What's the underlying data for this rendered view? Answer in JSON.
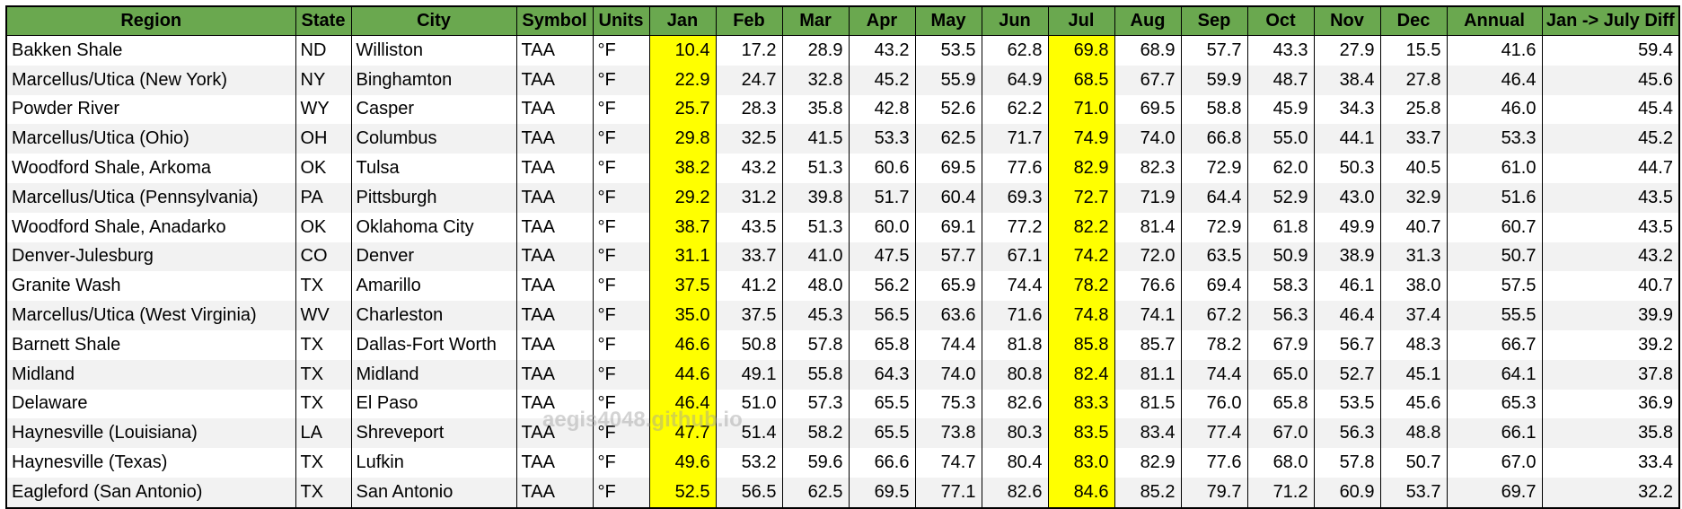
{
  "table": {
    "columns": [
      "Region",
      "State",
      "City",
      "Symbol",
      "Units",
      "Jan",
      "Feb",
      "Mar",
      "Apr",
      "May",
      "Jun",
      "Jul",
      "Aug",
      "Sep",
      "Oct",
      "Nov",
      "Dec",
      "Annual",
      "Jan -> July Diff"
    ],
    "highlight_columns": [
      "Jan",
      "Jul"
    ],
    "rows": [
      [
        "Bakken Shale",
        "ND",
        "Williston",
        "TAA",
        "°F",
        "10.4",
        "17.2",
        "28.9",
        "43.2",
        "53.5",
        "62.8",
        "69.8",
        "68.9",
        "57.7",
        "43.3",
        "27.9",
        "15.5",
        "41.6",
        "59.4"
      ],
      [
        "Marcellus/Utica (New York)",
        "NY",
        "Binghamton",
        "TAA",
        "°F",
        "22.9",
        "24.7",
        "32.8",
        "45.2",
        "55.9",
        "64.9",
        "68.5",
        "67.7",
        "59.9",
        "48.7",
        "38.4",
        "27.8",
        "46.4",
        "45.6"
      ],
      [
        "Powder River",
        "WY",
        "Casper",
        "TAA",
        "°F",
        "25.7",
        "28.3",
        "35.8",
        "42.8",
        "52.6",
        "62.2",
        "71.0",
        "69.5",
        "58.8",
        "45.9",
        "34.3",
        "25.8",
        "46.0",
        "45.4"
      ],
      [
        "Marcellus/Utica (Ohio)",
        "OH",
        "Columbus",
        "TAA",
        "°F",
        "29.8",
        "32.5",
        "41.5",
        "53.3",
        "62.5",
        "71.7",
        "74.9",
        "74.0",
        "66.8",
        "55.0",
        "44.1",
        "33.7",
        "53.3",
        "45.2"
      ],
      [
        "Woodford Shale, Arkoma",
        "OK",
        "Tulsa",
        "TAA",
        "°F",
        "38.2",
        "43.2",
        "51.3",
        "60.6",
        "69.5",
        "77.6",
        "82.9",
        "82.3",
        "72.9",
        "62.0",
        "50.3",
        "40.5",
        "61.0",
        "44.7"
      ],
      [
        "Marcellus/Utica (Pennsylvania)",
        "PA",
        "Pittsburgh",
        "TAA",
        "°F",
        "29.2",
        "31.2",
        "39.8",
        "51.7",
        "60.4",
        "69.3",
        "72.7",
        "71.9",
        "64.4",
        "52.9",
        "43.0",
        "32.9",
        "51.6",
        "43.5"
      ],
      [
        "Woodford Shale, Anadarko",
        "OK",
        "Oklahoma City",
        "TAA",
        "°F",
        "38.7",
        "43.5",
        "51.3",
        "60.0",
        "69.1",
        "77.2",
        "82.2",
        "81.4",
        "72.9",
        "61.8",
        "49.9",
        "40.7",
        "60.7",
        "43.5"
      ],
      [
        "Denver-Julesburg",
        "CO",
        "Denver",
        "TAA",
        "°F",
        "31.1",
        "33.7",
        "41.0",
        "47.5",
        "57.7",
        "67.1",
        "74.2",
        "72.0",
        "63.5",
        "50.9",
        "38.9",
        "31.3",
        "50.7",
        "43.2"
      ],
      [
        "Granite Wash",
        "TX",
        "Amarillo",
        "TAA",
        "°F",
        "37.5",
        "41.2",
        "48.0",
        "56.2",
        "65.9",
        "74.4",
        "78.2",
        "76.6",
        "69.4",
        "58.3",
        "46.1",
        "38.0",
        "57.5",
        "40.7"
      ],
      [
        "Marcellus/Utica (West Virginia)",
        "WV",
        "Charleston",
        "TAA",
        "°F",
        "35.0",
        "37.5",
        "45.3",
        "56.5",
        "63.6",
        "71.6",
        "74.8",
        "74.1",
        "67.2",
        "56.3",
        "46.4",
        "37.4",
        "55.5",
        "39.9"
      ],
      [
        "Barnett Shale",
        "TX",
        "Dallas-Fort Worth",
        "TAA",
        "°F",
        "46.6",
        "50.8",
        "57.8",
        "65.8",
        "74.4",
        "81.8",
        "85.8",
        "85.7",
        "78.2",
        "67.9",
        "56.7",
        "48.3",
        "66.7",
        "39.2"
      ],
      [
        "Midland",
        "TX",
        "Midland",
        "TAA",
        "°F",
        "44.6",
        "49.1",
        "55.8",
        "64.3",
        "74.0",
        "80.8",
        "82.4",
        "81.1",
        "74.4",
        "65.0",
        "52.7",
        "45.1",
        "64.1",
        "37.8"
      ],
      [
        "Delaware",
        "TX",
        "El Paso",
        "TAA",
        "°F",
        "46.4",
        "51.0",
        "57.3",
        "65.5",
        "75.3",
        "82.6",
        "83.3",
        "81.5",
        "76.0",
        "65.8",
        "53.5",
        "45.6",
        "65.3",
        "36.9"
      ],
      [
        "Haynesville (Louisiana)",
        "LA",
        "Shreveport",
        "TAA",
        "°F",
        "47.7",
        "51.4",
        "58.2",
        "65.5",
        "73.8",
        "80.3",
        "83.5",
        "83.4",
        "77.4",
        "67.0",
        "56.3",
        "48.8",
        "66.1",
        "35.8"
      ],
      [
        "Haynesville (Texas)",
        "TX",
        "Lufkin",
        "TAA",
        "°F",
        "49.6",
        "53.2",
        "59.6",
        "66.6",
        "74.7",
        "80.4",
        "83.0",
        "82.9",
        "77.6",
        "68.0",
        "57.8",
        "50.7",
        "67.0",
        "33.4"
      ],
      [
        "Eagleford (San Antonio)",
        "TX",
        "San Antonio",
        "TAA",
        "°F",
        "52.5",
        "56.5",
        "62.5",
        "69.5",
        "77.1",
        "82.6",
        "84.6",
        "85.2",
        "79.7",
        "71.2",
        "60.9",
        "53.7",
        "69.7",
        "32.2"
      ]
    ]
  },
  "watermark": "aegis4048.github.io",
  "colors": {
    "header_bg": "#6aa84f",
    "highlight": "#ffff00",
    "stripe": "#f2f2f2",
    "border": "#000000"
  }
}
